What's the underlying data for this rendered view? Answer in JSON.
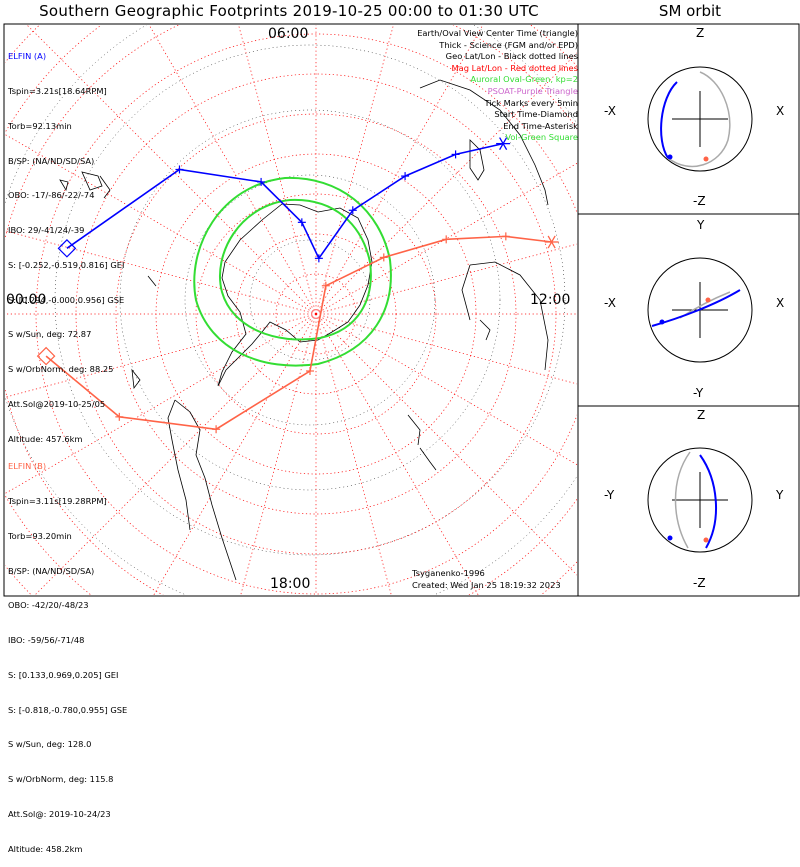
{
  "title": "Southern Geographic Footprints 2019-10-25 00:00 to 01:30 UTC",
  "sm_title": "SM orbit",
  "clock_labels": {
    "top": "06:00",
    "bottom": "18:00",
    "left": "00:00",
    "right": "12:00"
  },
  "legend": [
    {
      "text": "Earth/Oval View Center Time (triangle)",
      "color": "#000000"
    },
    {
      "text": "Thick - Science (FGM and/or EPD)",
      "color": "#000000"
    },
    {
      "text": "Geo Lat/Lon - Black dotted lines",
      "color": "#000000"
    },
    {
      "text": "Mag Lat/Lon - Red dotted lines",
      "color": "#ff0000"
    },
    {
      "text": "Auroral Oval-Green, kp=2",
      "color": "#33dd33"
    },
    {
      "text": "PSOAT-Purple Triangle",
      "color": "#cc66cc"
    },
    {
      "text": "Tick Marks every 5min",
      "color": "#000000"
    },
    {
      "text": "Start Time-Diamond",
      "color": "#000000"
    },
    {
      "text": "End Time-Asterisk",
      "color": "#000000"
    },
    {
      "text": "Vol-Green Square",
      "color": "#33dd33"
    }
  ],
  "elfin_a": {
    "name": "ELFIN (A)",
    "color": "#0000ff",
    "lines": [
      "Tspin=3.21s[18.64RPM]",
      "Torb=92.13min",
      "B/SP: (NA/ND/SD/SA)",
      "OBO: -17/-86/-22/-74",
      "IBO: 29/-41/24/-39",
      "S: [-0.252,-0.519,0.816] GEI",
      "S: [0.294,-0.000,0.956] GSE",
      "S w/Sun, deg: 72.87",
      "S w/OrbNorm, deg: 88.25",
      "Att.Sol@2019-10-25/05",
      "Altitude: 457.6km"
    ]
  },
  "elfin_b": {
    "name": "ELFIN (B)",
    "color": "#ff6347",
    "lines": [
      "Tspin=3.11s[19.28RPM]",
      "Torb=93.20min",
      "B/SP: (NA/ND/SD/SA)",
      "OBO: -42/20/-48/23",
      "IBO: -59/56/-71/48",
      "S: [0.133,0.969,0.205] GEI",
      "S: [-0.818,-0.780,0.955] GSE",
      "S w/Sun, deg: 128.0",
      "S w/OrbNorm, deg: 115.8",
      "Att.Sol@: 2019-10-24/23",
      "Altitude: 458.2km"
    ]
  },
  "model": "Tsyganenko-1996",
  "created": "Created: Wed Jan 25 18:19:32 2023",
  "colors": {
    "elfin_a": "#0000ff",
    "elfin_b": "#ff6347",
    "oval": "#33dd33",
    "mag_grid": "#ff0000",
    "geo_grid": "#000000",
    "orbit_shadow": "#aaaaaa"
  },
  "chart_data": [
    {
      "type": "line",
      "title": "Southern Geographic Footprints 2019-10-25 00:00 to 01:30 UTC",
      "xlabel": "",
      "ylabel": "",
      "series": [
        {
          "name": "ELFIN (A)",
          "color": "#0000ff",
          "mlt": [
            23.2,
            21.0,
            19.5,
            18.4,
            17.2,
            16.3,
            15.5,
            15.0,
            14.6
          ],
          "colat_deg": [
            70,
            52,
            36,
            22,
            12,
            28,
            44,
            58,
            70
          ]
        },
        {
          "name": "ELFIN (B)",
          "color": "#ff6347",
          "mlt": [
            0.8,
            2.1,
            3.6,
            6.0,
            14.8,
            14.0,
            13.6,
            13.2,
            12.9
          ],
          "colat_deg": [
            76,
            63,
            45,
            20,
            6,
            24,
            42,
            58,
            70
          ]
        }
      ],
      "auroral_oval": {
        "kp": 2
      }
    },
    {
      "type": "line",
      "title": "SM orbit",
      "panels": [
        {
          "h_axis": [
            "-X",
            "X"
          ],
          "v_axis": [
            "-Z",
            "Z"
          ]
        },
        {
          "h_axis": [
            "-X",
            "X"
          ],
          "v_axis": [
            "-Y",
            "Y"
          ]
        },
        {
          "h_axis": [
            "-Y",
            "Y"
          ],
          "v_axis": [
            "-Z",
            "Z"
          ]
        }
      ]
    }
  ]
}
